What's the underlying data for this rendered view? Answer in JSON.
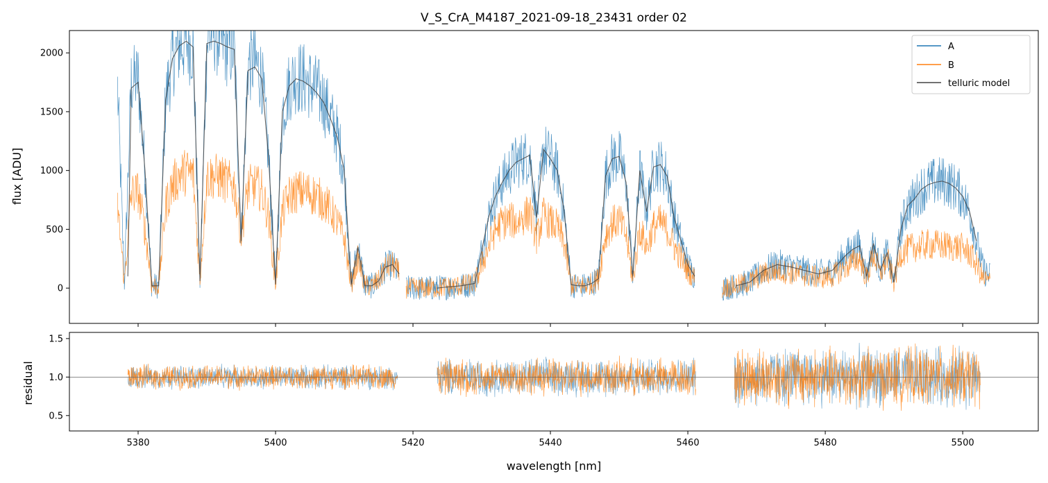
{
  "chart_data": [
    {
      "type": "line",
      "title": "V_S_CrA_M4187_2021-09-18_23431  order 02",
      "xlabel": "",
      "ylabel": "flux [ADU]",
      "xlim": [
        5370,
        5511
      ],
      "ylim": [
        -300,
        2190
      ],
      "yticks": [
        0,
        500,
        1000,
        1500,
        2000
      ],
      "xticks": [
        5380,
        5400,
        5420,
        5440,
        5460,
        5480,
        5500
      ],
      "legend": {
        "placement": "top-right",
        "entries": [
          "A",
          "B",
          "telluric model"
        ]
      },
      "colors": {
        "A": "#1f77b4",
        "B": "#ff7f0e",
        "telluric model": "#444444"
      },
      "series": [
        {
          "name": "A",
          "segments": [
            {
              "x": [
                5377,
                5378,
                5379,
                5380,
                5381,
                5382,
                5383,
                5384,
                5385,
                5386,
                5387,
                5388,
                5389,
                5390,
                5391,
                5392,
                5393,
                5394,
                5395,
                5396,
                5397,
                5398,
                5399,
                5400,
                5401,
                5402,
                5403,
                5404,
                5405,
                5406,
                5407,
                5408,
                5409,
                5410,
                5411,
                5412,
                5413,
                5414,
                5415,
                5416,
                5417,
                5418
              ],
              "y": [
                1700,
                50,
                1750,
                1780,
                1000,
                20,
                20,
                1600,
                1950,
                2060,
                2100,
                2050,
                60,
                2080,
                2200,
                2100,
                2050,
                2030,
                400,
                1900,
                1920,
                1800,
                1100,
                30,
                1500,
                1720,
                1800,
                1780,
                1740,
                1680,
                1600,
                1450,
                1300,
                1000,
                30,
                350,
                20,
                20,
                60,
                180,
                200,
                120
              ]
            },
            {
              "x": [
                5419,
                5421,
                5423,
                5425,
                5427,
                5429,
                5431,
                5432,
                5433,
                5434,
                5435,
                5436,
                5437,
                5438,
                5439,
                5440,
                5441,
                5442,
                5443,
                5444,
                5445,
                5446,
                5447,
                5448,
                5449,
                5450,
                5451,
                5452,
                5453,
                5454,
                5455,
                5456,
                5457,
                5458,
                5459,
                5460,
                5461
              ],
              "y": [
                0,
                0,
                0,
                10,
                20,
                40,
                600,
                780,
                900,
                1000,
                1070,
                1100,
                1130,
                600,
                1180,
                1100,
                1000,
                650,
                30,
                20,
                20,
                40,
                80,
                950,
                1100,
                1120,
                900,
                100,
                1000,
                650,
                1030,
                1050,
                950,
                600,
                400,
                200,
                100
              ]
            },
            {
              "x": [
                5465,
                5467,
                5469,
                5471,
                5473,
                5475,
                5477,
                5479,
                5481,
                5483,
                5484,
                5485,
                5486,
                5487,
                5488,
                5489,
                5490,
                5491,
                5492,
                5493,
                5494,
                5495,
                5496,
                5497,
                5498,
                5499,
                5500,
                5501,
                5502,
                5503,
                5504
              ],
              "y": [
                0,
                20,
                50,
                150,
                200,
                180,
                150,
                120,
                150,
                280,
                330,
                360,
                100,
                380,
                150,
                300,
                50,
                500,
                700,
                760,
                840,
                880,
                900,
                910,
                890,
                850,
                780,
                650,
                400,
                150,
                100
              ]
            }
          ]
        },
        {
          "name": "B",
          "segments": [
            {
              "x": [
                5377,
                5378,
                5379,
                5380,
                5381,
                5382,
                5383,
                5384,
                5385,
                5386,
                5387,
                5388,
                5389,
                5390,
                5391,
                5392,
                5393,
                5394,
                5395,
                5396,
                5397,
                5398,
                5399,
                5400,
                5401,
                5402,
                5403,
                5404,
                5405,
                5406,
                5407,
                5408,
                5409,
                5410,
                5411,
                5412,
                5413,
                5414,
                5415,
                5416,
                5417,
                5418
              ],
              "y": [
                700,
                60,
                800,
                820,
                500,
                20,
                20,
                700,
                880,
                960,
                990,
                970,
                60,
                940,
                950,
                940,
                900,
                880,
                450,
                860,
                870,
                830,
                600,
                30,
                650,
                780,
                820,
                820,
                810,
                780,
                740,
                660,
                560,
                420,
                30,
                250,
                20,
                20,
                60,
                180,
                200,
                120
              ]
            },
            {
              "x": [
                5419,
                5421,
                5423,
                5425,
                5427,
                5429,
                5431,
                5432,
                5433,
                5434,
                5435,
                5436,
                5437,
                5438,
                5439,
                5440,
                5441,
                5442,
                5443,
                5444,
                5445,
                5446,
                5447,
                5448,
                5449,
                5450,
                5451,
                5452,
                5453,
                5454,
                5455,
                5456,
                5457,
                5458,
                5459,
                5460,
                5461
              ],
              "y": [
                0,
                0,
                0,
                10,
                20,
                40,
                350,
                500,
                560,
                580,
                560,
                600,
                650,
                420,
                620,
                560,
                520,
                380,
                30,
                20,
                20,
                40,
                80,
                450,
                550,
                580,
                450,
                60,
                500,
                350,
                520,
                560,
                500,
                350,
                250,
                150,
                80
              ]
            },
            {
              "x": [
                5465,
                5467,
                5469,
                5471,
                5473,
                5475,
                5477,
                5479,
                5481,
                5483,
                5484,
                5485,
                5486,
                5487,
                5488,
                5489,
                5490,
                5491,
                5492,
                5493,
                5494,
                5495,
                5496,
                5497,
                5498,
                5499,
                5500,
                5501,
                5502,
                5503,
                5504
              ],
              "y": [
                0,
                20,
                50,
                120,
                150,
                130,
                110,
                90,
                100,
                180,
                220,
                260,
                80,
                290,
                120,
                250,
                50,
                300,
                330,
                350,
                360,
                370,
                370,
                360,
                360,
                350,
                340,
                300,
                200,
                80,
                50
              ]
            }
          ]
        },
        {
          "name": "telluric model",
          "segments": [
            {
              "x": [
                5378.5,
                5379,
                5380,
                5381,
                5382,
                5383,
                5384,
                5385,
                5386,
                5387,
                5388,
                5389,
                5390,
                5391,
                5392,
                5393,
                5394,
                5395,
                5396,
                5397,
                5398,
                5399,
                5400,
                5401,
                5402,
                5403,
                5404,
                5405,
                5406,
                5407,
                5408,
                5409,
                5410,
                5411,
                5412,
                5413,
                5414,
                5415,
                5416,
                5417,
                5418
              ],
              "y": [
                100,
                1700,
                1750,
                1000,
                20,
                20,
                1600,
                1950,
                2060,
                2100,
                2050,
                60,
                2080,
                2100,
                2080,
                2050,
                2030,
                400,
                1850,
                1880,
                1780,
                1100,
                30,
                1500,
                1720,
                1780,
                1760,
                1720,
                1660,
                1580,
                1440,
                1280,
                1000,
                30,
                350,
                20,
                20,
                60,
                180,
                200,
                120
              ]
            },
            {
              "x": [
                5423.5,
                5425,
                5427,
                5429,
                5431,
                5432,
                5433,
                5434,
                5435,
                5436,
                5437,
                5438,
                5439,
                5440,
                5441,
                5442,
                5443,
                5444,
                5445,
                5446,
                5447,
                5448,
                5449,
                5450,
                5451,
                5452,
                5453,
                5454,
                5455,
                5456,
                5457,
                5458,
                5459,
                5460,
                5461
              ],
              "y": [
                0,
                10,
                20,
                40,
                600,
                780,
                900,
                1000,
                1070,
                1100,
                1130,
                600,
                1180,
                1100,
                1000,
                650,
                30,
                20,
                20,
                40,
                80,
                950,
                1100,
                1120,
                900,
                100,
                1000,
                650,
                1030,
                1050,
                950,
                600,
                400,
                200,
                100
              ]
            },
            {
              "x": [
                5467,
                5469,
                5471,
                5473,
                5475,
                5477,
                5479,
                5481,
                5483,
                5484,
                5485,
                5486,
                5487,
                5488,
                5489,
                5490,
                5491,
                5492,
                5493,
                5494,
                5495,
                5496,
                5497,
                5498,
                5499,
                5500,
                5501,
                5502
              ],
              "y": [
                20,
                50,
                150,
                200,
                180,
                150,
                120,
                150,
                280,
                330,
                360,
                100,
                380,
                150,
                300,
                50,
                500,
                700,
                760,
                840,
                880,
                900,
                910,
                890,
                850,
                780,
                650,
                400
              ]
            }
          ]
        }
      ]
    },
    {
      "type": "line",
      "title": "",
      "xlabel": "wavelength [nm]",
      "ylabel": "residual",
      "xlim": [
        5370,
        5511
      ],
      "ylim": [
        0.3,
        1.58
      ],
      "yticks": [
        0.5,
        1.0,
        1.5
      ],
      "ytick_labels": [
        "0.5",
        "1.0",
        "1.5"
      ],
      "xticks": [
        5380,
        5400,
        5420,
        5440,
        5460,
        5480,
        5500
      ],
      "reference_line": 1.0,
      "series": [
        {
          "name": "A",
          "segments": [
            {
              "x_range": [
                5378.5,
                5417.8
              ],
              "center": 1.0,
              "spread": 0.18
            },
            {
              "x_range": [
                5423.5,
                5461.2
              ],
              "center": 1.0,
              "spread": 0.28
            },
            {
              "x_range": [
                5466.8,
                5502.6
              ],
              "center": 1.0,
              "spread": 0.45
            }
          ]
        },
        {
          "name": "B",
          "segments": [
            {
              "x_range": [
                5378.5,
                5417.8
              ],
              "center": 1.0,
              "spread": 0.18
            },
            {
              "x_range": [
                5423.5,
                5461.2
              ],
              "center": 1.0,
              "spread": 0.28
            },
            {
              "x_range": [
                5466.8,
                5502.6
              ],
              "center": 1.0,
              "spread": 0.45
            }
          ]
        }
      ]
    }
  ]
}
